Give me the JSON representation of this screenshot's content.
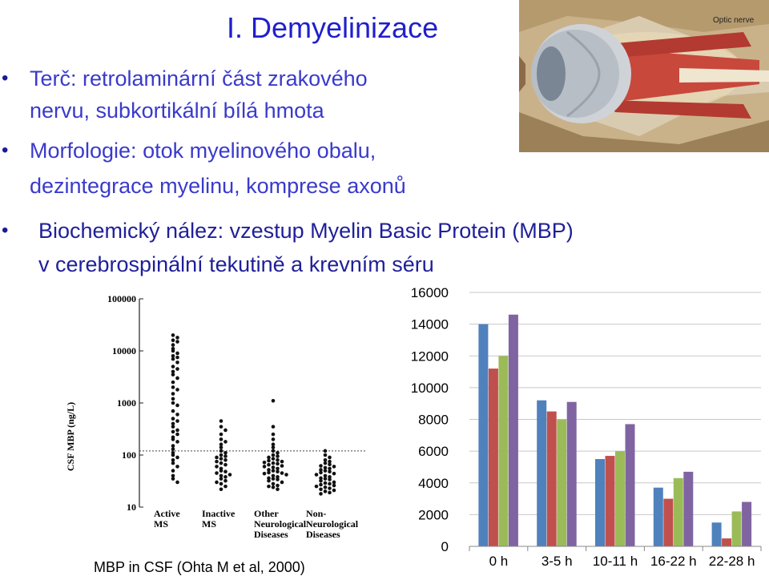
{
  "slide": {
    "title": "I. Demyelinizace",
    "bullets": [
      {
        "line1": "Terč: retrolaminární část zrakového",
        "line2": "nervu, subkortikální bílá hmota"
      },
      {
        "line1": "Morfologie: otok myelinového obalu,",
        "line2": "dezintegrace myelinu, komprese axonů"
      },
      {
        "line1": "Biochemický nález: vzestup Myelin Basic Protein (MBP)",
        "line2": "v cerebrospinální tekutině a krevním séru"
      }
    ],
    "bullet_symbol": "•"
  },
  "eye_image": {
    "label": "Optic nerve",
    "icon": "eye-anatomy-illustration"
  },
  "caption": "MBP in CSF (Ohta M et al, 2000)",
  "colors": {
    "title": "#1f1fcc",
    "bullet_text": "#3a3acc",
    "series": [
      "#4f81bd",
      "#c0504d",
      "#9bbb59",
      "#8064a2"
    ]
  },
  "chart_data": [
    {
      "type": "scatter",
      "ylabel": "CSF MBP (ng/L)",
      "yscale": "log",
      "ylim": [
        10,
        100000
      ],
      "yticks": [
        "100000",
        "10000",
        "1000",
        "100",
        "10"
      ],
      "categories": [
        {
          "line1": "Active",
          "line2": "MS",
          "line3": ""
        },
        {
          "line1": "Inactive",
          "line2": "MS",
          "line3": ""
        },
        {
          "line1": "Other",
          "line2": "Neurological",
          "line3": "Diseases"
        },
        {
          "line1": "Non-",
          "line2": "Neurological",
          "line3": "Diseases"
        }
      ],
      "threshold": 120,
      "groups": [
        {
          "name": "Active MS",
          "values": [
            20000,
            18000,
            16000,
            15000,
            13000,
            11000,
            10000,
            9000,
            8000,
            7500,
            7000,
            6000,
            5000,
            4500,
            4000,
            3500,
            3000,
            2500,
            2000,
            1800,
            1500,
            1200,
            1000,
            900,
            700,
            600,
            500,
            450,
            400,
            350,
            300,
            280,
            250,
            220,
            200,
            180,
            150,
            130,
            110,
            100,
            90,
            80,
            70,
            60,
            50,
            40,
            35,
            30
          ]
        },
        {
          "name": "Inactive MS",
          "values": [
            450,
            350,
            300,
            250,
            200,
            180,
            160,
            140,
            120,
            110,
            100,
            95,
            90,
            85,
            80,
            75,
            70,
            65,
            60,
            55,
            50,
            48,
            45,
            42,
            40,
            38,
            35,
            32,
            30,
            28,
            25,
            22
          ]
        },
        {
          "name": "Other Neurological Diseases",
          "values": [
            1100,
            350,
            250,
            200,
            160,
            140,
            120,
            110,
            100,
            95,
            90,
            85,
            80,
            78,
            75,
            72,
            70,
            68,
            65,
            62,
            60,
            58,
            55,
            52,
            50,
            48,
            46,
            45,
            44,
            42,
            40,
            38,
            36,
            35,
            34,
            32,
            30,
            28,
            26,
            25,
            24,
            22
          ]
        },
        {
          "name": "Non-Neurological Diseases",
          "values": [
            120,
            100,
            90,
            80,
            75,
            70,
            66,
            62,
            60,
            57,
            55,
            52,
            50,
            48,
            46,
            44,
            42,
            40,
            38,
            36,
            35,
            34,
            32,
            30,
            29,
            28,
            27,
            26,
            25,
            24,
            23,
            22,
            21,
            20,
            19,
            18
          ]
        }
      ]
    },
    {
      "type": "bar",
      "categories": [
        "0 h",
        "3-5 h",
        "10-11 h",
        "16-22 h",
        "22-28 h"
      ],
      "ylim": [
        0,
        16000
      ],
      "yticks": [
        "0",
        "2000",
        "4000",
        "6000",
        "8000",
        "10000",
        "12000",
        "14000",
        "16000"
      ],
      "grid": true,
      "series": [
        {
          "values": [
            14000,
            9200,
            5500,
            3700,
            1500
          ]
        },
        {
          "values": [
            11200,
            8500,
            5700,
            3000,
            500
          ]
        },
        {
          "values": [
            12000,
            8000,
            6000,
            4300,
            2200
          ]
        },
        {
          "values": [
            14600,
            9100,
            7700,
            4700,
            2800
          ]
        }
      ]
    }
  ]
}
